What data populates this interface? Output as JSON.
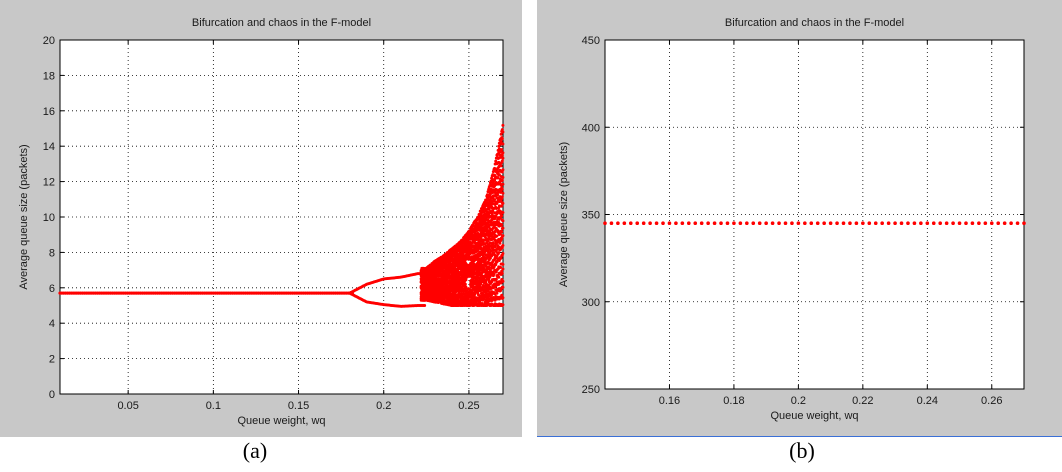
{
  "chart_data": [
    {
      "type": "scatter",
      "title": "Bifurcation and chaos in the F-model",
      "xlabel": "Queue weight, wq",
      "ylabel": "Average queue size (packets)",
      "xlim": [
        0.01,
        0.27
      ],
      "ylim": [
        0,
        20
      ],
      "xticks": [
        0.05,
        0.1,
        0.15,
        0.2,
        0.25
      ],
      "xtick_labels": [
        "0.05",
        "0.1",
        "0.15",
        "0.2",
        "0.25"
      ],
      "yticks": [
        0,
        2,
        4,
        6,
        8,
        10,
        12,
        14,
        16,
        18,
        20
      ],
      "ytick_labels": [
        "0",
        "2",
        "4",
        "6",
        "8",
        "10",
        "12",
        "14",
        "16",
        "18",
        "20"
      ],
      "grid": true,
      "marker_color": "#ff0000",
      "series": [
        {
          "description_points": "period-1 branch then period-doubling then chaos",
          "x": [
            0.01,
            0.03,
            0.05,
            0.07,
            0.09,
            0.11,
            0.13,
            0.15,
            0.17,
            0.18
          ],
          "y": [
            5.7,
            5.7,
            5.7,
            5.7,
            5.7,
            5.7,
            5.7,
            5.7,
            5.7,
            5.7
          ],
          "upper_branch": {
            "x": [
              0.18,
              0.19,
              0.2,
              0.21,
              0.22
            ],
            "y": [
              5.7,
              6.2,
              6.5,
              6.6,
              6.8
            ]
          },
          "lower_branch": {
            "x": [
              0.18,
              0.19,
              0.2,
              0.21,
              0.22
            ],
            "y": [
              5.7,
              5.2,
              5.05,
              4.95,
              5.0
            ]
          },
          "chaos_envelope": {
            "x": [
              0.225,
              0.23,
              0.235,
              0.24,
              0.245,
              0.25,
              0.255,
              0.26,
              0.265,
              0.27
            ],
            "y_min": [
              5.3,
              5.2,
              5.1,
              5.0,
              5.0,
              5.0,
              5.0,
              5.0,
              5.0,
              5.0
            ],
            "y_max": [
              7.1,
              7.5,
              7.8,
              8.2,
              8.6,
              9.2,
              10.0,
              11.0,
              12.8,
              15.2
            ]
          }
        }
      ]
    },
    {
      "type": "scatter",
      "title": "Bifurcation and chaos in the F-model",
      "xlabel": "Queue weight, wq",
      "ylabel": "Average queue size (packets)",
      "xlim": [
        0.14,
        0.27
      ],
      "ylim": [
        250,
        450
      ],
      "xticks": [
        0.16,
        0.18,
        0.2,
        0.22,
        0.24,
        0.26
      ],
      "xtick_labels": [
        "0.16",
        "0.18",
        "0.2",
        "0.22",
        "0.24",
        "0.26"
      ],
      "yticks": [
        250,
        300,
        350,
        400,
        450
      ],
      "ytick_labels": [
        "250",
        "300",
        "350",
        "400",
        "450"
      ],
      "grid": true,
      "marker_color": "#ff0000",
      "series": [
        {
          "x_start": 0.14,
          "x_end": 0.27,
          "x_step": 0.002,
          "y_constant": 345
        }
      ]
    }
  ],
  "captions": {
    "a": "(a)",
    "b": "(b)"
  }
}
